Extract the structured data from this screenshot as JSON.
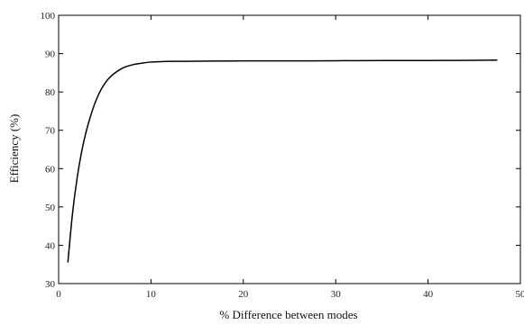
{
  "chart_data": {
    "type": "line",
    "title": "",
    "xlabel": "% Difference between modes",
    "ylabel": "Efficiency (%)",
    "xlim": [
      0,
      50
    ],
    "ylim": [
      30,
      100
    ],
    "xticks": [
      "0",
      "10",
      "20",
      "30",
      "40",
      "50"
    ],
    "yticks": [
      "30",
      "40",
      "50",
      "60",
      "70",
      "80",
      "90",
      "100"
    ],
    "grid": false,
    "legend": "none",
    "line_color": "#000000",
    "series": [
      {
        "x": [
          1,
          1.5,
          2,
          2.5,
          3,
          3.5,
          4,
          4.5,
          5,
          5.5,
          6,
          7,
          8,
          9,
          10,
          11,
          12,
          14,
          16,
          20,
          25,
          30,
          35,
          40,
          45,
          47.5
        ],
        "values": [
          35.5,
          48.2,
          57.5,
          64.5,
          69.8,
          74.0,
          77.5,
          80.2,
          82.2,
          83.7,
          84.8,
          86.3,
          87.1,
          87.5,
          87.8,
          87.9,
          88.0,
          88.0,
          88.05,
          88.1,
          88.1,
          88.15,
          88.2,
          88.2,
          88.25,
          88.3
        ]
      }
    ]
  }
}
